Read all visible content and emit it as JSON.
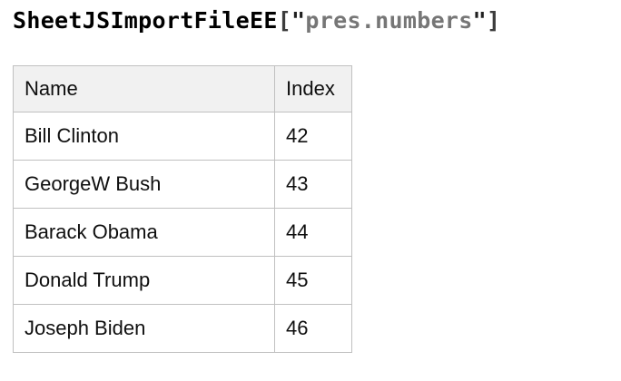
{
  "title": {
    "function_name": "SheetJSImportFileEE",
    "open_bracket": "[",
    "open_quote": "\"",
    "string_value": "pres.numbers",
    "close_quote": "\"",
    "close_bracket": "]"
  },
  "colors": {
    "title_function": "#000000",
    "title_punctuation": "#3c3c3c",
    "title_quote": "#1f1f1f",
    "title_string": "#767676",
    "table_border": "#c0c0c0",
    "header_background": "#f1f1f1",
    "cell_background": "#ffffff",
    "text": "#0f0f0f",
    "page_background": "#ffffff"
  },
  "table": {
    "columns": {
      "name": {
        "label": "Name"
      },
      "index": {
        "label": "Index"
      }
    },
    "rows": [
      {
        "name": "Bill Clinton",
        "index": "42"
      },
      {
        "name": "GeorgeW Bush",
        "index": "43"
      },
      {
        "name": "Barack Obama",
        "index": "44"
      },
      {
        "name": "Donald Trump",
        "index": "45"
      },
      {
        "name": "Joseph Biden",
        "index": "46"
      }
    ]
  }
}
